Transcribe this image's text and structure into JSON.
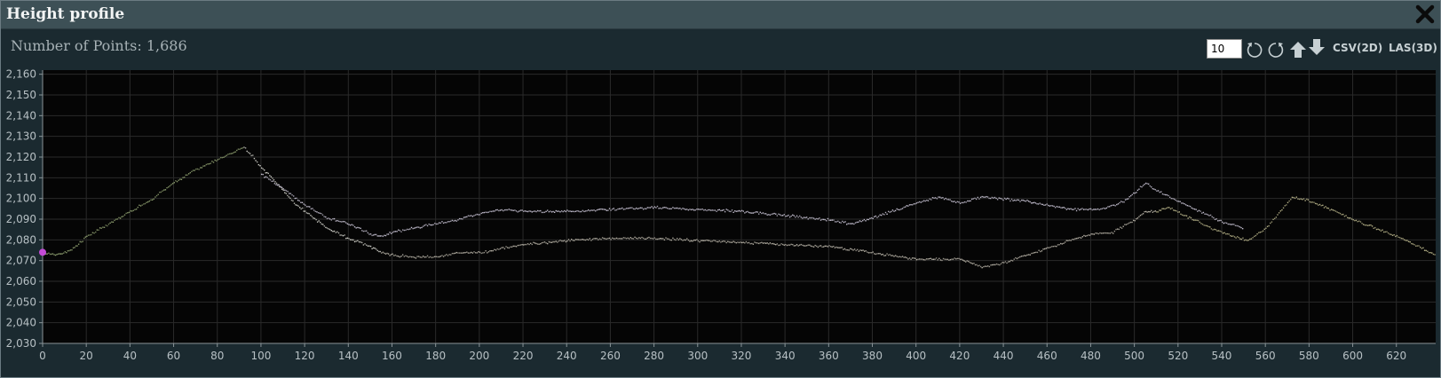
{
  "window": {
    "title": "Height profile",
    "close_icon": "close-icon"
  },
  "info": {
    "points_label": "Number of Points:",
    "points_value": "1,686"
  },
  "toolbar": {
    "thin_value": "10",
    "rotate_ccw_icon": "rotate-left-icon",
    "rotate_cw_icon": "rotate-right-icon",
    "up_icon": "arrow-up-icon",
    "down_icon": "arrow-down-icon",
    "csv_label": "CSV(2D)",
    "las_label": "LAS(3D)"
  },
  "chart_data": {
    "type": "scatter",
    "x_ticks": [
      0,
      20,
      40,
      60,
      80,
      100,
      120,
      140,
      160,
      180,
      200,
      220,
      240,
      260,
      280,
      300,
      320,
      340,
      360,
      380,
      400,
      420,
      440,
      460,
      480,
      500,
      520,
      540,
      560,
      580,
      600,
      620
    ],
    "y_ticks": [
      "2,030",
      "2,040",
      "2,050",
      "2,060",
      "2,070",
      "2,080",
      "2,090",
      "2,100",
      "2,110",
      "2,120",
      "2,130",
      "2,140",
      "2,150",
      "2,160"
    ],
    "xlim": [
      0,
      638
    ],
    "ylim": [
      2030,
      2162
    ],
    "grid": true,
    "colors": {
      "background": "#050505",
      "grid": "#2a2a2a",
      "marker": "#c34bd6"
    },
    "series": [
      {
        "color": "#8fa070",
        "x": [
          0,
          5,
          10,
          15,
          20,
          30,
          40,
          50,
          60,
          70,
          80,
          88,
          92
        ],
        "y": [
          2074,
          2073,
          2074,
          2077,
          2082,
          2088,
          2094,
          2100,
          2108,
          2114,
          2119,
          2123,
          2125
        ]
      },
      {
        "color": "#d6d6ce",
        "x": [
          92,
          96,
          100,
          105,
          110,
          115,
          120,
          125,
          130,
          140,
          150,
          155
        ],
        "y": [
          2125,
          2121,
          2115,
          2110,
          2104,
          2098,
          2094,
          2090,
          2086,
          2081,
          2077,
          2074
        ]
      },
      {
        "color": "#b9b4a8",
        "x": [
          155,
          160,
          170,
          180,
          190,
          200,
          210,
          220,
          240,
          260,
          280,
          300,
          320,
          340,
          360,
          380,
          400,
          420,
          425,
          430,
          440,
          450,
          460,
          470,
          480,
          490,
          500,
          505,
          510
        ],
        "y": [
          2074,
          2073,
          2072,
          2072,
          2074,
          2074,
          2076,
          2078,
          2080,
          2081,
          2081,
          2080,
          2079,
          2078,
          2077,
          2074,
          2071,
          2071,
          2069,
          2067,
          2069,
          2073,
          2076,
          2080,
          2083,
          2084,
          2090,
          2094,
          2094
        ]
      },
      {
        "color": "#b9b58a",
        "x": [
          510,
          515,
          525,
          535,
          545,
          552,
          560,
          566,
          572,
          580,
          590,
          600,
          610,
          620,
          630,
          638
        ],
        "y": [
          2094,
          2096,
          2091,
          2086,
          2082,
          2080,
          2086,
          2093,
          2101,
          2099,
          2095,
          2090,
          2086,
          2082,
          2077,
          2073
        ]
      },
      {
        "color": "#c8c3d4",
        "x": [
          100,
          110,
          120,
          130,
          140,
          150,
          155,
          160,
          170,
          180,
          190,
          200,
          210,
          220,
          240,
          260,
          280,
          300,
          320,
          340,
          360,
          370,
          380,
          400,
          410,
          420,
          430,
          450,
          470,
          485,
          495,
          500,
          505,
          510,
          520,
          530,
          540,
          550
        ],
        "y": [
          2112,
          2105,
          2097,
          2091,
          2088,
          2083,
          2082,
          2084,
          2086,
          2088,
          2090,
          2093,
          2095,
          2094,
          2094,
          2095,
          2096,
          2095,
          2094,
          2092,
          2090,
          2088,
          2091,
          2098,
          2101,
          2098,
          2101,
          2099,
          2095,
          2095,
          2099,
          2103,
          2108,
          2104,
          2099,
          2094,
          2089,
          2086
        ]
      }
    ]
  }
}
